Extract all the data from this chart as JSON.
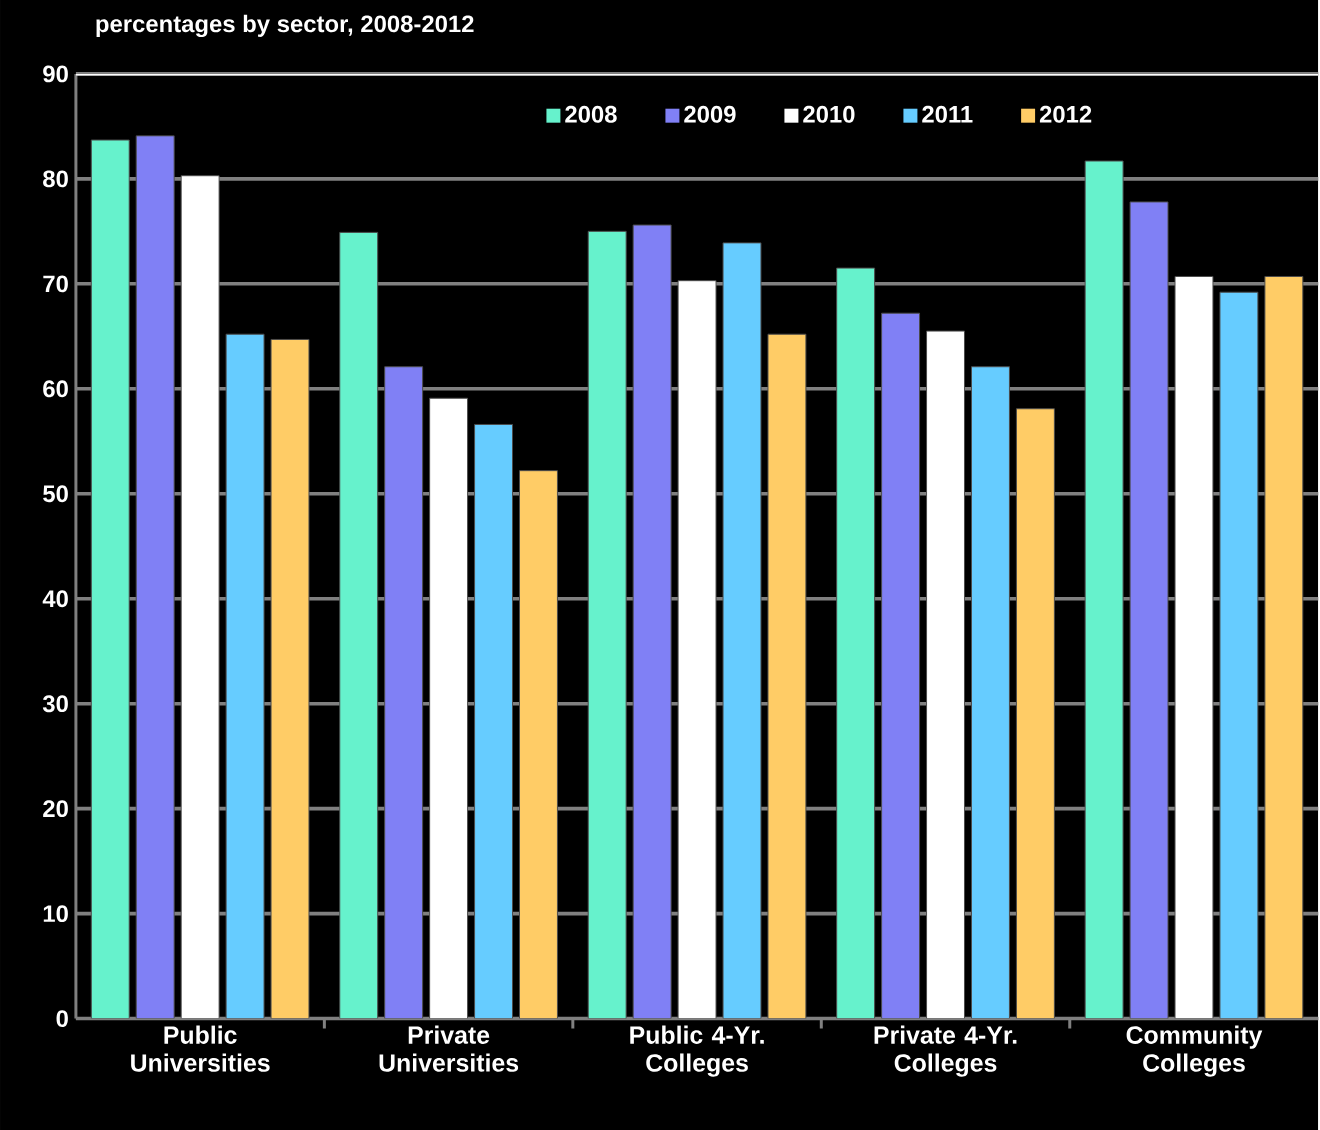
{
  "chart_data": {
    "type": "bar",
    "title": "percentages by sector, 2008-2012",
    "categories": [
      "Public Universities",
      "Private Universities",
      "Public 4-Yr. Colleges",
      "Private 4-Yr. Colleges",
      "Community Colleges"
    ],
    "series": [
      {
        "name": "2008",
        "color": "#66f2cc",
        "values": [
          83.7,
          74.9,
          75.0,
          71.5,
          81.7
        ]
      },
      {
        "name": "2009",
        "color": "#8080f5",
        "values": [
          84.1,
          62.1,
          75.6,
          67.2,
          77.8
        ]
      },
      {
        "name": "2010",
        "color": "#ffffff",
        "values": [
          80.3,
          59.1,
          70.3,
          65.5,
          70.7
        ]
      },
      {
        "name": "2011",
        "color": "#66ccff",
        "values": [
          65.2,
          56.6,
          73.9,
          62.1,
          69.2
        ]
      },
      {
        "name": "2012",
        "color": "#ffcc66",
        "values": [
          64.7,
          52.2,
          65.2,
          58.1,
          70.7
        ]
      }
    ],
    "ylim": [
      0,
      90
    ],
    "yticks": [
      0,
      10,
      20,
      30,
      40,
      50,
      60,
      70,
      80,
      90
    ],
    "grid": "y",
    "legend": "top"
  }
}
